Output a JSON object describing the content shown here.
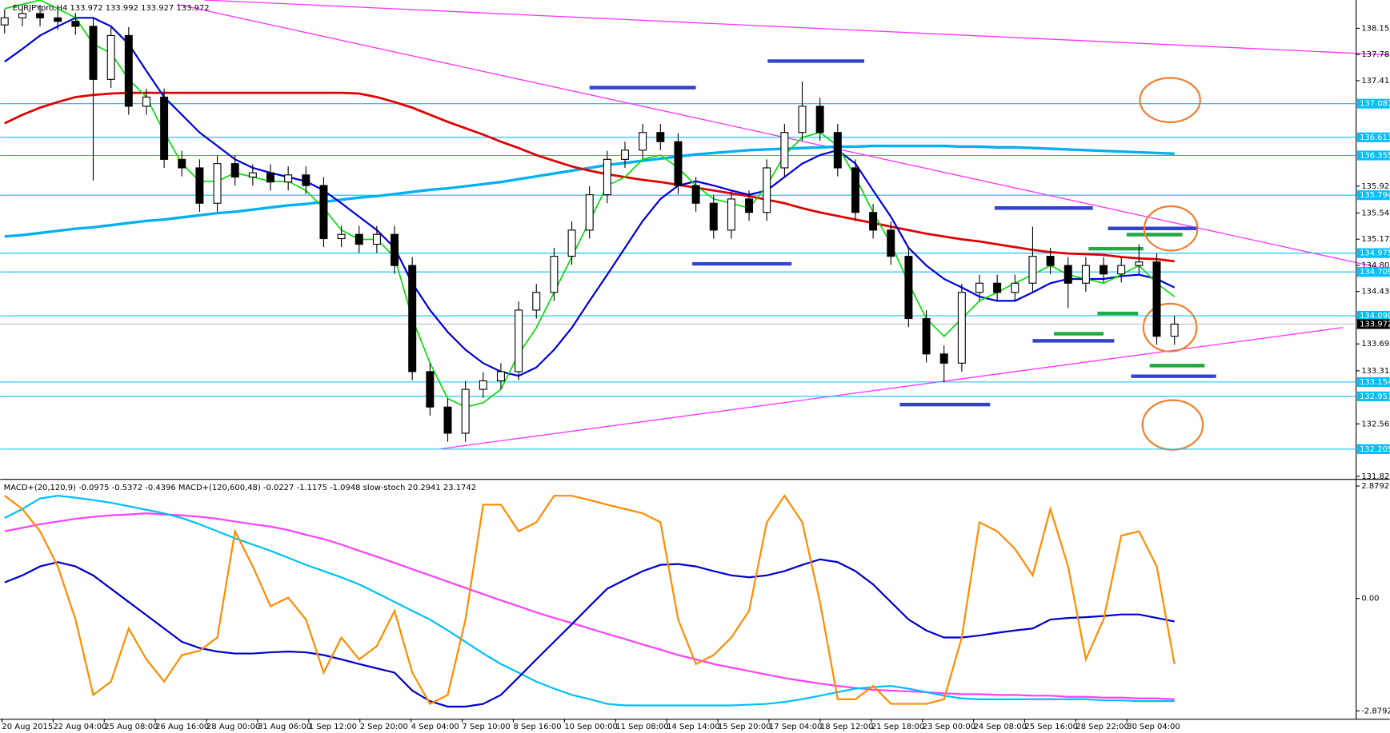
{
  "chart_data": [
    {
      "type": "candlestick",
      "title": "EURJPYpro,H4  133.972 133.992 133.927 133.972",
      "open": [
        138.2,
        138.3,
        138.36,
        138.3,
        138.25,
        138.18,
        137.43,
        138.05,
        137.05,
        137.18,
        136.3,
        136.18,
        135.68,
        136.24,
        136.05,
        136.11,
        135.98,
        136.08,
        135.93,
        135.18,
        135.24,
        135.1,
        135.24,
        134.8,
        133.3,
        132.8,
        132.43,
        133.05,
        133.17,
        133.3,
        134.17,
        134.42,
        134.93,
        135.3,
        135.8,
        136.3,
        136.43,
        136.68,
        136.55,
        135.93,
        135.68,
        135.3,
        135.74,
        135.55,
        136.18,
        136.68,
        137.05,
        136.68,
        136.18,
        135.55,
        135.3,
        134.93,
        134.05,
        133.55,
        133.42,
        134.42,
        134.55,
        134.42,
        134.55,
        134.93,
        134.8,
        134.55,
        134.8,
        134.68,
        134.8,
        134.85,
        133.8
      ],
      "high": [
        138.42,
        138.48,
        138.48,
        138.42,
        138.37,
        138.3,
        138.17,
        138.17,
        137.3,
        137.3,
        136.42,
        136.3,
        136.36,
        136.36,
        136.23,
        136.23,
        136.2,
        136.2,
        136.05,
        135.36,
        135.36,
        135.36,
        135.36,
        134.92,
        133.42,
        132.92,
        133.17,
        133.29,
        133.42,
        134.29,
        134.54,
        135.05,
        135.42,
        135.92,
        136.42,
        136.55,
        136.8,
        136.8,
        136.67,
        136.05,
        135.8,
        135.86,
        135.86,
        136.3,
        136.8,
        137.4,
        137.17,
        136.8,
        136.3,
        135.67,
        135.42,
        135.05,
        134.17,
        133.67,
        134.54,
        134.67,
        134.67,
        134.67,
        135.35,
        135.05,
        134.92,
        134.92,
        134.92,
        134.92,
        135.1,
        134.97,
        134.09
      ],
      "low": [
        138.08,
        138.18,
        138.18,
        138.13,
        138.06,
        136.0,
        137.31,
        136.93,
        136.93,
        136.18,
        136.06,
        135.56,
        135.56,
        135.93,
        135.93,
        135.86,
        135.86,
        135.81,
        135.06,
        135.06,
        134.98,
        134.98,
        134.68,
        133.18,
        132.68,
        132.31,
        132.31,
        132.93,
        133.05,
        133.18,
        134.05,
        134.3,
        134.81,
        135.18,
        135.68,
        136.18,
        136.31,
        136.43,
        135.81,
        135.56,
        135.18,
        135.18,
        135.43,
        135.43,
        136.06,
        136.56,
        136.56,
        136.06,
        135.43,
        135.18,
        134.81,
        133.93,
        133.43,
        133.15,
        133.3,
        134.3,
        134.3,
        134.3,
        134.43,
        134.68,
        134.2,
        134.43,
        134.56,
        134.56,
        134.68,
        133.68,
        133.68
      ],
      "close": [
        138.3,
        138.36,
        138.3,
        138.25,
        138.18,
        137.43,
        138.05,
        137.05,
        137.18,
        136.3,
        136.18,
        135.68,
        136.24,
        136.05,
        136.11,
        135.98,
        136.08,
        135.93,
        135.18,
        135.24,
        135.1,
        135.24,
        134.8,
        133.3,
        132.8,
        132.43,
        133.05,
        133.17,
        133.3,
        134.17,
        134.42,
        134.93,
        135.3,
        135.8,
        136.3,
        136.43,
        136.68,
        136.55,
        135.93,
        135.68,
        135.3,
        135.74,
        135.55,
        136.18,
        136.68,
        137.05,
        136.68,
        136.18,
        135.55,
        135.3,
        134.93,
        134.05,
        133.55,
        133.42,
        134.42,
        134.55,
        134.42,
        134.55,
        134.93,
        134.8,
        134.55,
        134.8,
        134.68,
        134.8,
        134.85,
        133.8,
        133.972
      ],
      "up_color": "#ffffff",
      "down_color": "#000000",
      "overlays": [
        {
          "color": "#00b0f0",
          "width": 3,
          "values": [
            135.21,
            135.23,
            135.26,
            135.29,
            135.32,
            135.34,
            135.37,
            135.4,
            135.43,
            135.45,
            135.48,
            135.51,
            135.54,
            135.56,
            135.59,
            135.62,
            135.65,
            135.67,
            135.7,
            135.73,
            135.76,
            135.78,
            135.81,
            135.84,
            135.87,
            135.89,
            135.92,
            135.95,
            135.98,
            136.02,
            136.06,
            136.1,
            136.14,
            136.18,
            136.22,
            136.25,
            136.28,
            136.31,
            136.34,
            136.37,
            136.39,
            136.41,
            136.43,
            136.44,
            136.45,
            136.46,
            136.47,
            136.48,
            136.48,
            136.49,
            136.49,
            136.49,
            136.49,
            136.49,
            136.48,
            136.48,
            136.47,
            136.47,
            136.46,
            136.45,
            136.44,
            136.43,
            136.42,
            136.41,
            136.4,
            136.39,
            136.38
          ]
        },
        {
          "color": "#e00000",
          "width": 2.5,
          "values": [
            136.81,
            136.93,
            137.03,
            137.11,
            137.18,
            137.21,
            137.23,
            137.24,
            137.24,
            137.24,
            137.24,
            137.24,
            137.24,
            137.24,
            137.24,
            137.24,
            137.24,
            137.24,
            137.24,
            137.24,
            137.23,
            137.18,
            137.11,
            137.03,
            136.93,
            136.83,
            136.74,
            136.65,
            136.55,
            136.46,
            136.36,
            136.28,
            136.2,
            136.14,
            136.09,
            136.05,
            136.01,
            135.98,
            135.94,
            135.9,
            135.86,
            135.82,
            135.78,
            135.73,
            135.68,
            135.61,
            135.55,
            135.5,
            135.45,
            135.4,
            135.35,
            135.3,
            135.25,
            135.21,
            135.17,
            135.14,
            135.1,
            135.06,
            135.02,
            134.99,
            134.97,
            134.96,
            134.95,
            134.92,
            134.9,
            134.89,
            134.86
          ]
        },
        {
          "color": "#0000dd",
          "width": 2,
          "values": [
            137.68,
            137.86,
            138.05,
            138.18,
            138.3,
            138.3,
            138.18,
            137.93,
            137.55,
            137.18,
            136.93,
            136.68,
            136.49,
            136.3,
            136.18,
            136.11,
            136.05,
            135.99,
            135.86,
            135.68,
            135.49,
            135.3,
            135.05,
            134.55,
            134.17,
            133.86,
            133.61,
            133.42,
            133.3,
            133.24,
            133.36,
            133.61,
            133.92,
            134.3,
            134.67,
            135.05,
            135.43,
            135.74,
            135.93,
            135.99,
            135.93,
            135.86,
            135.8,
            135.86,
            136.05,
            136.24,
            136.36,
            136.43,
            136.24,
            135.86,
            135.49,
            135.05,
            134.8,
            134.61,
            134.49,
            134.36,
            134.3,
            134.3,
            134.42,
            134.55,
            134.61,
            134.61,
            134.61,
            134.65,
            134.67,
            134.61,
            134.49
          ]
        },
        {
          "color": "#00dd00",
          "width": 1.5,
          "values": [
            138.43,
            138.49,
            138.55,
            138.43,
            138.3,
            137.93,
            137.8,
            137.43,
            137.18,
            136.68,
            136.24,
            135.99,
            135.99,
            136.11,
            136.05,
            135.99,
            135.99,
            135.86,
            135.61,
            135.3,
            135.17,
            135.17,
            134.92,
            134.05,
            133.42,
            132.92,
            132.8,
            132.86,
            133.05,
            133.55,
            133.92,
            134.42,
            134.92,
            135.43,
            135.93,
            136.05,
            136.3,
            136.36,
            136.18,
            135.93,
            135.74,
            135.68,
            135.61,
            135.93,
            136.36,
            136.61,
            136.68,
            136.49,
            136.05,
            135.55,
            135.11,
            134.55,
            134.05,
            133.8,
            134.05,
            134.3,
            134.42,
            134.55,
            134.67,
            134.8,
            134.67,
            134.61,
            134.55,
            134.67,
            134.8,
            134.55,
            134.36
          ]
        }
      ],
      "levels": [
        137.087,
        136.611,
        136.355,
        135.794,
        134.975,
        134.709,
        {
          "value": 134.09,
          "label": "134.090"
        },
        133.154,
        132.951,
        132.205
      ],
      "level_color": "#00bfff",
      "current": 133.972,
      "current_color": "#c0c0c0",
      "ylim": [
        131.784,
        138.552
      ],
      "yticks": [
        138.152,
        137.782,
        137.412,
        135.922,
        135.542,
        135.172,
        134.802,
        134.432,
        133.692,
        133.312,
        132.562,
        131.822
      ],
      "x_labels": [
        "20 Aug 2015",
        "22 Aug 04:00",
        "25 Aug 08:00",
        "26 Aug 16:00",
        "28 Aug 00:00",
        "31 Aug 06:00",
        "1 Sep 12:00",
        "2 Sep 20:00",
        "4 Sep 04:00",
        "7 Sep 10:00",
        "8 Sep 16:00",
        "10 Sep 00:00",
        "11 Sep 08:00",
        "14 Sep 14:00",
        "15 Sep 20:00",
        "17 Sep 04:00",
        "18 Sep 12:00",
        "21 Sep 18:00",
        "23 Sep 00:00",
        "24 Sep 08:00",
        "25 Sep 16:00",
        "28 Sep 22:00",
        "30 Sep 04:00"
      ]
    },
    {
      "type": "line",
      "title": "MACD+(20,120,9) -0.0975 -0.5372 -0.4396  MACD+(120,600,48) -0.0227 -1.1175 -1.0948  slow-stoch 20.2941 23.1742",
      "ylim": [
        -3.083,
        3.015
      ],
      "yticks": [
        2.8792,
        {
          "value": 0,
          "label": "0.00"
        },
        -2.8792
      ],
      "series": [
        {
          "color": "#ff40ff",
          "values": [
            1.72,
            1.81,
            1.9,
            1.97,
            2.04,
            2.09,
            2.13,
            2.15,
            2.18,
            2.15,
            2.13,
            2.09,
            2.04,
            1.97,
            1.9,
            1.84,
            1.75,
            1.63,
            1.52,
            1.38,
            1.22,
            1.07,
            0.91,
            0.75,
            0.59,
            0.43,
            0.27,
            0.11,
            -0.05,
            -0.2,
            -0.36,
            -0.5,
            -0.63,
            -0.77,
            -0.91,
            -1.04,
            -1.18,
            -1.31,
            -1.45,
            -1.56,
            -1.68,
            -1.77,
            -1.86,
            -1.95,
            -2.04,
            -2.11,
            -2.18,
            -2.24,
            -2.29,
            -2.34,
            -2.36,
            -2.38,
            -2.4,
            -2.43,
            -2.45,
            -2.45,
            -2.47,
            -2.47,
            -2.49,
            -2.49,
            -2.52,
            -2.52,
            -2.54,
            -2.54,
            -2.56,
            -2.56,
            -2.58
          ]
        },
        {
          "color": "#00bfff",
          "values": [
            2.06,
            2.29,
            2.56,
            2.63,
            2.58,
            2.52,
            2.45,
            2.36,
            2.27,
            2.18,
            2.06,
            1.9,
            1.72,
            1.54,
            1.38,
            1.22,
            1.04,
            0.86,
            0.7,
            0.54,
            0.36,
            0.14,
            -0.09,
            -0.32,
            -0.54,
            -0.82,
            -1.11,
            -1.41,
            -1.68,
            -1.9,
            -2.13,
            -2.31,
            -2.47,
            -2.58,
            -2.7,
            -2.74,
            -2.74,
            -2.74,
            -2.74,
            -2.74,
            -2.74,
            -2.74,
            -2.72,
            -2.7,
            -2.65,
            -2.58,
            -2.49,
            -2.4,
            -2.31,
            -2.27,
            -2.24,
            -2.31,
            -2.4,
            -2.49,
            -2.56,
            -2.58,
            -2.58,
            -2.58,
            -2.58,
            -2.58,
            -2.58,
            -2.58,
            -2.61,
            -2.61,
            -2.63,
            -2.63,
            -2.63
          ]
        },
        {
          "color": "#0000cc",
          "values": [
            0.41,
            0.59,
            0.82,
            0.93,
            0.82,
            0.59,
            0.25,
            -0.09,
            -0.43,
            -0.77,
            -1.11,
            -1.27,
            -1.36,
            -1.41,
            -1.41,
            -1.38,
            -1.36,
            -1.38,
            -1.45,
            -1.56,
            -1.68,
            -1.79,
            -1.9,
            -2.36,
            -2.63,
            -2.77,
            -2.77,
            -2.7,
            -2.47,
            -2.02,
            -1.56,
            -1.11,
            -0.66,
            -0.2,
            0.25,
            0.48,
            0.7,
            0.86,
            0.88,
            0.82,
            0.7,
            0.59,
            0.54,
            0.59,
            0.7,
            0.86,
            1.0,
            0.93,
            0.7,
            0.36,
            -0.09,
            -0.54,
            -0.82,
            -1.0,
            -1.0,
            -0.95,
            -0.88,
            -0.82,
            -0.77,
            -0.54,
            -0.5,
            -0.48,
            -0.45,
            -0.41,
            -0.41,
            -0.5,
            -0.59
          ]
        },
        {
          "color": "#ff8c00",
          "values": [
            2.63,
            2.29,
            1.72,
            0.82,
            -0.54,
            -2.47,
            -2.13,
            -0.77,
            -1.56,
            -2.13,
            -1.45,
            -1.34,
            -1.0,
            1.72,
            0.82,
            -0.2,
            0.02,
            -0.54,
            -1.9,
            -1.0,
            -1.56,
            -1.22,
            -0.32,
            -1.9,
            -2.7,
            -2.47,
            -0.54,
            2.4,
            2.4,
            1.72,
            1.95,
            2.63,
            2.63,
            2.52,
            2.4,
            2.29,
            2.18,
            1.95,
            -0.54,
            -1.68,
            -1.45,
            -1.0,
            -0.32,
            1.95,
            2.63,
            1.95,
            -0.09,
            -2.58,
            -2.58,
            -2.24,
            -2.7,
            -2.7,
            -2.7,
            -2.58,
            -1.0,
            1.95,
            1.72,
            1.27,
            0.59,
            2.29,
            0.82,
            -1.56,
            -0.54,
            1.61,
            1.72,
            0.82,
            -1.68
          ]
        }
      ]
    }
  ]
}
